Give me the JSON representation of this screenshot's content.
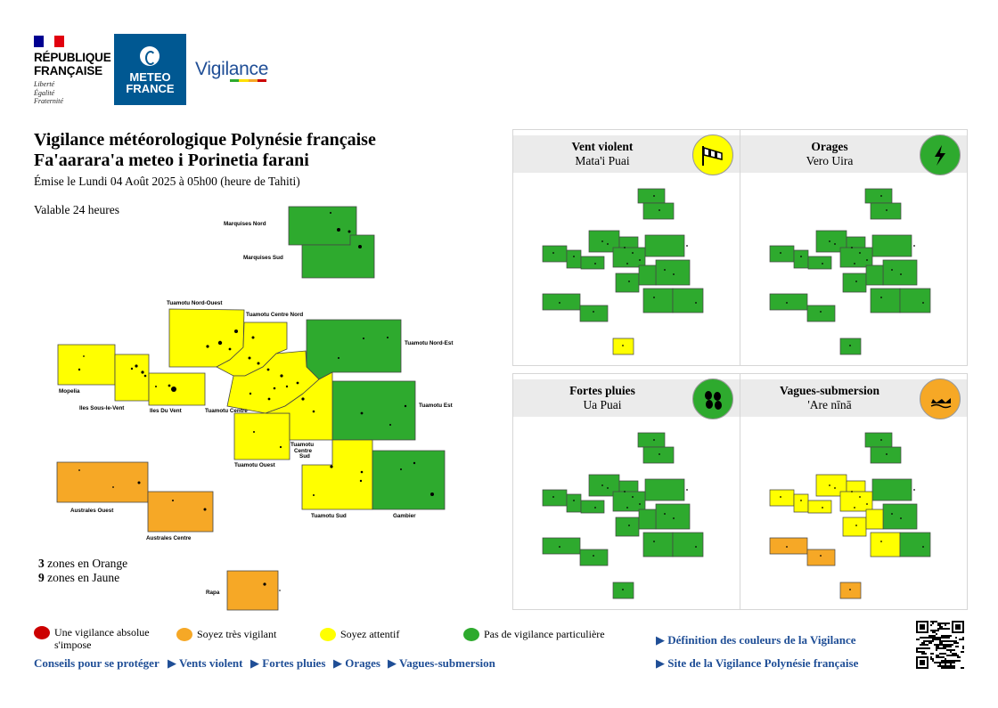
{
  "header": {
    "republic_line1": "RÉPUBLIQUE",
    "republic_line2": "FRANÇAISE",
    "motto": [
      "Liberté",
      "Égalité",
      "Fraternité"
    ],
    "meteo_line1": "METEO",
    "meteo_line2": "FRANCE",
    "vigilance_logo": "Vigilance"
  },
  "title": {
    "line1": "Vigilance météorologique Polynésie française",
    "line2": "Fa'aarara'a meteo i Porinetia farani",
    "issued": "Émise le Lundi 04 Août 2025 à 05h00 (heure de Tahiti)",
    "validity": "Valable 24 heures"
  },
  "colors": {
    "red": "#cc0000",
    "orange": "#f6a826",
    "yellow": "#ffff00",
    "green": "#2eaa2e",
    "link": "#1f4e96"
  },
  "zones": [
    {
      "id": "marquises-nord",
      "label": "Marquises Nord",
      "level": "green"
    },
    {
      "id": "marquises-sud",
      "label": "Marquises Sud",
      "level": "green"
    },
    {
      "id": "tuamotu-nord-ouest",
      "label": "Tuamotu Nord-Ouest",
      "level": "yellow"
    },
    {
      "id": "tuamotu-centre-nord",
      "label": "Tuamotu Centre Nord",
      "level": "yellow"
    },
    {
      "id": "tuamotu-nord-est",
      "label": "Tuamotu Nord-Est",
      "level": "green"
    },
    {
      "id": "mopelia",
      "label": "Mopelia",
      "level": "yellow"
    },
    {
      "id": "iles-sous-le-vent",
      "label": "Iles Sous-le-Vent",
      "level": "yellow"
    },
    {
      "id": "iles-du-vent",
      "label": "Iles Du Vent",
      "level": "yellow"
    },
    {
      "id": "tuamotu-centre",
      "label": "Tuamotu Centre",
      "level": "yellow"
    },
    {
      "id": "tuamotu-est",
      "label": "Tuamotu Est",
      "level": "green"
    },
    {
      "id": "tuamotu-ouest",
      "label": "Tuamotu Ouest",
      "level": "yellow"
    },
    {
      "id": "tuamotu-centre-sud",
      "label": "Tuamotu Centre Sud",
      "level": "yellow"
    },
    {
      "id": "tuamotu-sud",
      "label": "Tuamotu Sud",
      "level": "yellow"
    },
    {
      "id": "gambier",
      "label": "Gambier",
      "level": "green"
    },
    {
      "id": "australes-ouest",
      "label": "Australes Ouest",
      "level": "orange"
    },
    {
      "id": "australes-centre",
      "label": "Australes Centre",
      "level": "orange"
    },
    {
      "id": "rapa",
      "label": "Rapa",
      "level": "orange"
    }
  ],
  "summary": {
    "orange_count": "3",
    "orange_text": "zones en Orange",
    "yellow_count": "9",
    "yellow_text": "zones en Jaune"
  },
  "panels": [
    {
      "title": "Vent violent",
      "subtitle": "Mata'i Puai",
      "icon": "wind-sock-icon",
      "icon_color": "yellow"
    },
    {
      "title": "Orages",
      "subtitle": "Vero Uira",
      "icon": "lightning-icon",
      "icon_color": "green"
    },
    {
      "title": "Fortes pluies",
      "subtitle": "Ua Puai",
      "icon": "rain-drops-icon",
      "icon_color": "green"
    },
    {
      "title": "Vagues-submersion",
      "subtitle": "'Are nīnā",
      "icon": "waves-icon",
      "icon_color": "orange"
    }
  ],
  "legend": [
    {
      "color": "red",
      "label": "Une vigilance absolue s'impose"
    },
    {
      "color": "orange",
      "label": "Soyez très vigilant"
    },
    {
      "color": "yellow",
      "label": "Soyez attentif"
    },
    {
      "color": "green",
      "label": "Pas de vigilance particulière"
    }
  ],
  "links": {
    "advice_label": "Conseils pour se protéger",
    "advice_items": [
      "▶ Vents violent",
      "▶ Fortes pluies",
      "▶ Orages",
      "▶ Vagues-submersion"
    ],
    "definition": "▶ Définition des couleurs de la Vigilance",
    "site": "▶ Site de la Vigilance Polynésie française"
  }
}
